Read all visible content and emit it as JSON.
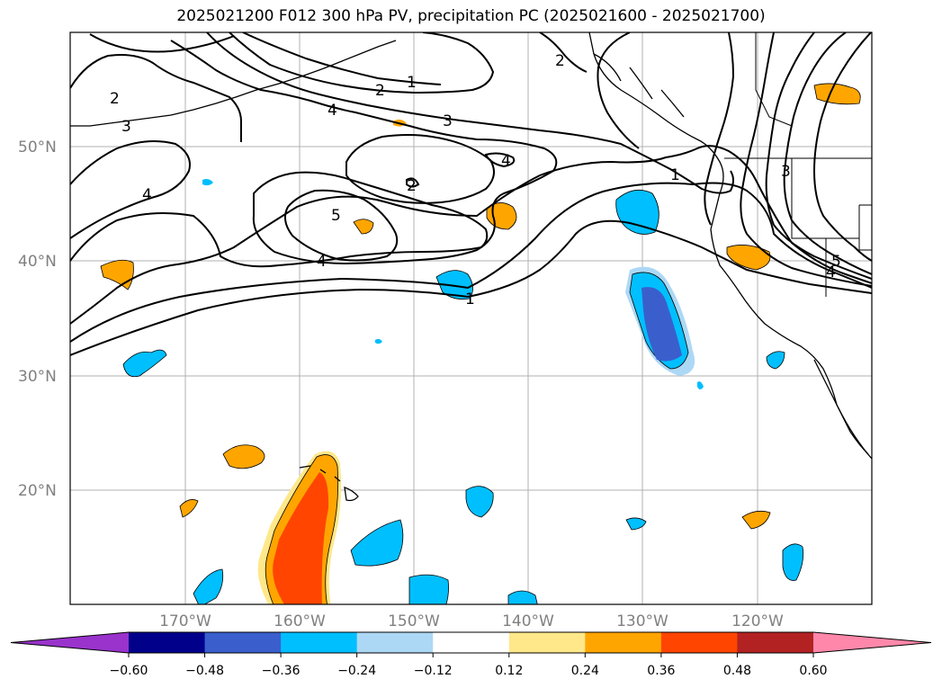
{
  "title": "2025021200 F012 300 hPa PV, precipitation PC (2025021600 - 2025021700)",
  "lat_labels": [
    "50°N",
    "40°N",
    "30°N",
    "20°N"
  ],
  "lon_labels": [
    "170°W",
    "160°W",
    "150°W",
    "140°W",
    "130°W",
    "120°W"
  ],
  "contour_labels": [
    "1",
    "1",
    "1",
    "2",
    "2",
    "2",
    "2",
    "3",
    "3",
    "3",
    "4",
    "4",
    "4",
    "4",
    "4",
    "5",
    "5"
  ],
  "colorbar": {
    "ticks": [
      "−0.60",
      "−0.48",
      "−0.36",
      "−0.24",
      "−0.12",
      "0.12",
      "0.24",
      "0.36",
      "0.48",
      "0.60"
    ],
    "colors": [
      "#9933cc",
      "#00008b",
      "#3a5fcd",
      "#00bfff",
      "#add8f5",
      "#ffffff",
      "#ffe88a",
      "#ffa500",
      "#ff4500",
      "#b22222",
      "#ff88aa"
    ]
  }
}
